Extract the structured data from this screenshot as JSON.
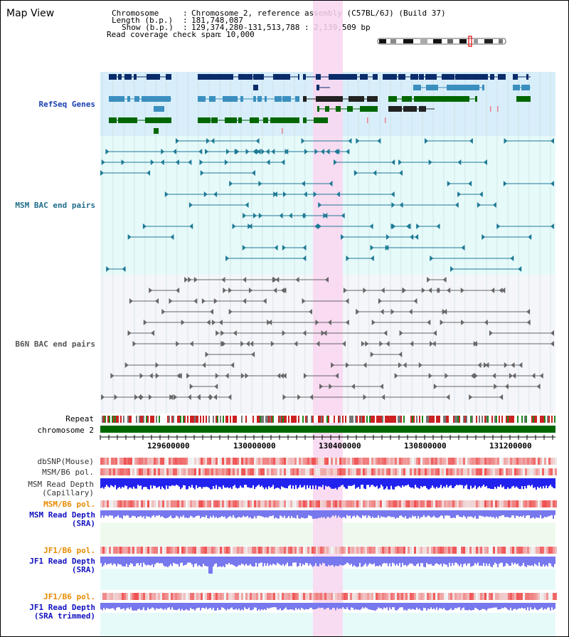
{
  "view_title": "Map View",
  "info": {
    "chromosome_key": "Chromosome",
    "chromosome_val": "Chromosome 2, reference assembly (C57BL/6J) (Build 37)",
    "length_key": "Length (b.p.)",
    "length_val": "181,748,087",
    "show_key": "Show (b.p.)",
    "show_val": "129,374,280-131,513,788 : 2,139,509 bp",
    "coverage_key": "Read coverage check span",
    "coverage_val": "10,000"
  },
  "tracks": {
    "refseq": "RefSeq Genes",
    "msm_bac": "MSM BAC end pairs",
    "b6n_bac": "B6N BAC end pairs",
    "repeat": "Repeat",
    "chromosome": "chromosome 2",
    "dbsnp": "dbSNP(Mouse)",
    "msm_b6_pol_1": "MSM/B6 pol.",
    "msm_read_depth_cap_1": "MSM Read Depth",
    "msm_read_depth_cap_2": "(Capillary)",
    "msm_b6_pol_2": "MSM/B6 pol.",
    "msm_read_depth_sra_1": "MSM Read Depth",
    "msm_read_depth_sra_2": "(SRA)",
    "jf1_b6_pol_1": "JF1/B6 pol.",
    "jf1_read_depth_sra_1": "JF1 Read Depth",
    "jf1_read_depth_sra_2": "(SRA)",
    "jf1_b6_pol_2": "JF1/B6 pol.",
    "jf1_read_depth_trim_1": "JF1 Read Depth",
    "jf1_read_depth_trim_2": "(SRA trimmed)"
  },
  "axis_ticks": [
    "129600000",
    "130000000",
    "130400000",
    "130800000",
    "131200000"
  ],
  "colors": {
    "highlight": "#f9d6f0",
    "refseq_bg": "#d8eefa",
    "msm_bg": "#e6fafa",
    "b6n_bg": "#f4f6fa",
    "refseq_dark": "#0b2c6b",
    "refseq_mid": "#3a8fbf",
    "refseq_green": "#006600",
    "msm_line": "#1f7a96",
    "b6n_line": "#666666",
    "read_depth": "#2222ee",
    "sra_depth": "#7777ee"
  }
}
